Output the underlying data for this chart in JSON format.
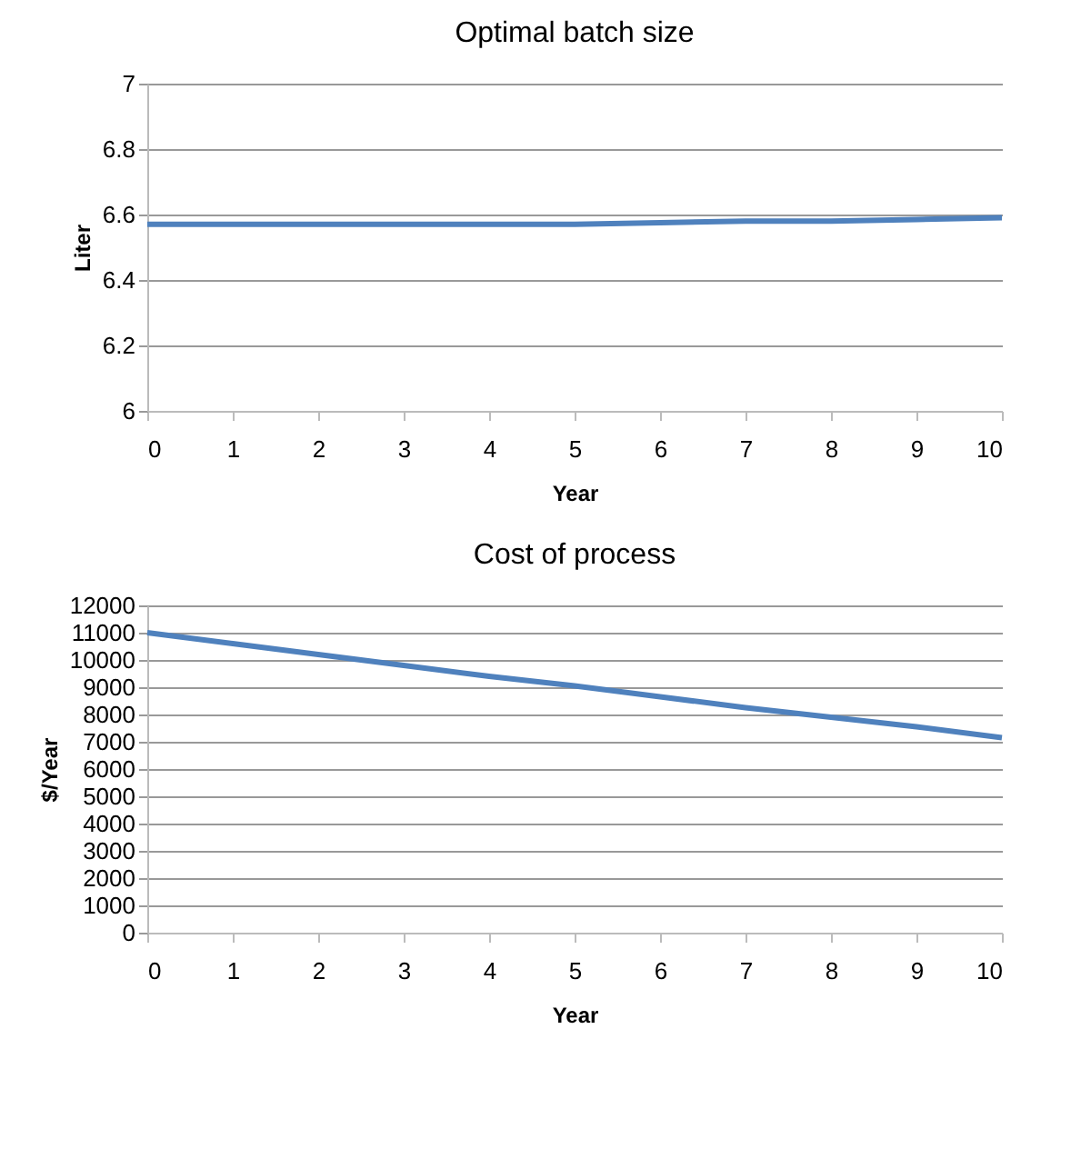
{
  "chart_data": [
    {
      "type": "line",
      "title": "Optimal batch size",
      "xlabel": "Year",
      "ylabel": "Liter",
      "x": [
        0,
        1,
        2,
        3,
        4,
        5,
        6,
        7,
        8,
        9,
        10
      ],
      "series": [
        {
          "color": "#4f81bd",
          "values": [
            6.57,
            6.57,
            6.57,
            6.57,
            6.57,
            6.57,
            6.575,
            6.58,
            6.58,
            6.585,
            6.59
          ]
        }
      ],
      "xlim": [
        0,
        10
      ],
      "xticks": [
        0,
        1,
        2,
        3,
        4,
        5,
        6,
        7,
        8,
        9,
        10
      ],
      "ylim": [
        6,
        7
      ],
      "yticks": [
        6,
        6.2,
        6.4,
        6.6,
        6.8,
        7
      ],
      "grid": "y",
      "marker": "none",
      "line_style": "solid"
    },
    {
      "type": "line",
      "title": "Cost of process",
      "xlabel": "Year",
      "ylabel": "$/Year",
      "x": [
        0,
        1,
        2,
        3,
        4,
        5,
        6,
        7,
        8,
        9,
        10
      ],
      "series": [
        {
          "color": "#4f81bd",
          "values": [
            11000,
            10600,
            10200,
            9800,
            9400,
            9050,
            8650,
            8250,
            7900,
            7550,
            7150
          ]
        }
      ],
      "xlim": [
        0,
        10
      ],
      "xticks": [
        0,
        1,
        2,
        3,
        4,
        5,
        6,
        7,
        8,
        9,
        10
      ],
      "ylim": [
        0,
        12000
      ],
      "yticks": [
        0,
        1000,
        2000,
        3000,
        4000,
        5000,
        6000,
        7000,
        8000,
        9000,
        10000,
        11000,
        12000
      ],
      "grid": "y",
      "marker": "none",
      "line_style": "solid"
    }
  ]
}
